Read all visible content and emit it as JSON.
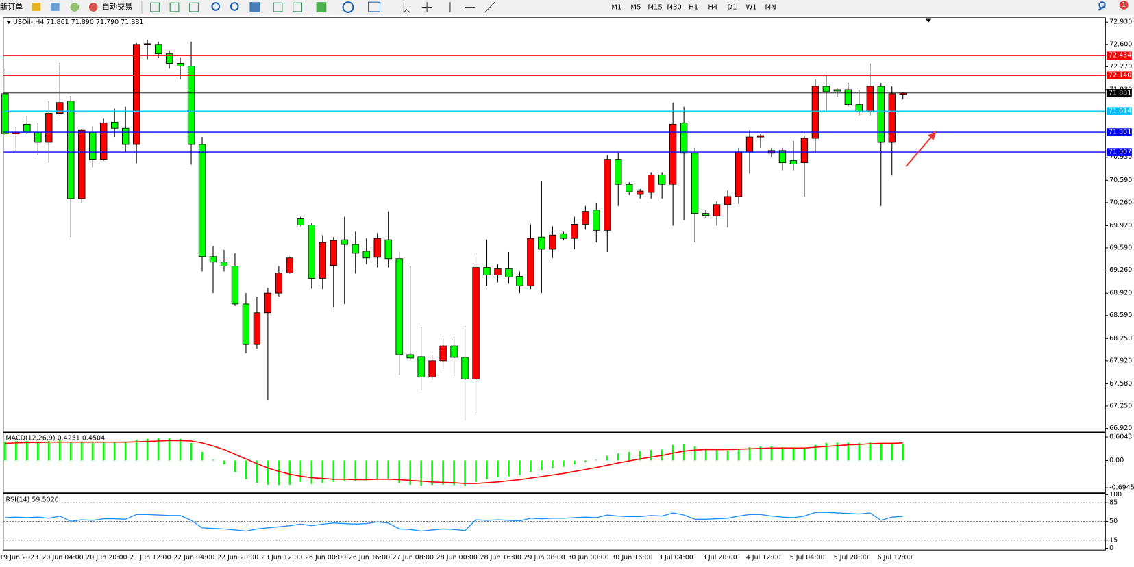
{
  "toolbar": {
    "new_order": "新订单",
    "auto_trading": "自动交易",
    "timeframes": [
      "M1",
      "M5",
      "M15",
      "M30",
      "H1",
      "H4",
      "D1",
      "W1",
      "MN"
    ],
    "notifications": 1
  },
  "chart_data": [
    {
      "type": "candlestick",
      "title": "USOil-,H4  71.861 71.890 71.790 71.881",
      "categories": [
        null,
        "19 Jun 2023",
        null,
        null,
        null,
        "20 Jun 04:00",
        null,
        null,
        null,
        "20 Jun 20:00",
        null,
        null,
        null,
        "21 Jun 12:00",
        null,
        null,
        null,
        "22 Jun 04:00",
        null,
        null,
        null,
        "22 Jun 20:00",
        null,
        null,
        null,
        "23 Jun 12:00",
        null,
        null,
        null,
        "26 Jun 00:00",
        null,
        null,
        null,
        "26 Jun 16:00",
        null,
        null,
        null,
        "27 Jun 08:00",
        null,
        null,
        null,
        "28 Jun 00:00",
        null,
        null,
        null,
        "28 Jun 16:00",
        null,
        null,
        null,
        "29 Jun 08:00",
        null,
        null,
        null,
        "30 Jun 00:00",
        null,
        null,
        null,
        "30 Jun 16:00",
        null,
        null,
        null,
        "3 Jul 04:00",
        null,
        null,
        null,
        "3 Jul 20:00",
        null,
        null,
        null,
        "4 Jul 12:00",
        null,
        null,
        null,
        "5 Jul 04:00",
        null,
        null,
        null,
        "5 Jul 20:00",
        null,
        null,
        null,
        "6 Jul 12:00",
        null
      ],
      "open": [
        71.87,
        71.28,
        71.42,
        71.3,
        71.15,
        71.58,
        71.76,
        70.32,
        71.3,
        70.9,
        71.45,
        71.36,
        71.12,
        72.6,
        72.6,
        72.46,
        72.32,
        72.28,
        71.12,
        69.46,
        69.38,
        69.32,
        68.76,
        68.16,
        68.63,
        68.92,
        69.22,
        70.02,
        69.93,
        69.14,
        69.33,
        69.71,
        69.64,
        69.54,
        69.45,
        69.71,
        69.43,
        68.01,
        67.98,
        67.68,
        67.92,
        68.14,
        67.97,
        67.65,
        69.3,
        69.19,
        69.28,
        69.17,
        69.03,
        69.75,
        69.57,
        69.8,
        69.73,
        69.94,
        70.15,
        69.85,
        70.9,
        70.53,
        70.38,
        70.41,
        70.67,
        70.53,
        71.44,
        70.99,
        70.1,
        70.06,
        70.23,
        70.35,
        71.01,
        71.23,
        70.99,
        71.03,
        70.88,
        70.85,
        71.21,
        71.98,
        71.93,
        71.93,
        71.71,
        71.6,
        71.98,
        71.15,
        71.861
      ],
      "high": [
        72.24,
        71.38,
        71.55,
        71.44,
        71.76,
        72.33,
        71.84,
        71.35,
        71.39,
        71.5,
        71.65,
        71.68,
        72.62,
        72.67,
        72.64,
        72.51,
        72.41,
        72.64,
        71.23,
        69.62,
        69.56,
        69.51,
        68.92,
        68.87,
        69.0,
        69.32,
        69.46,
        70.05,
        69.96,
        69.78,
        69.75,
        70.05,
        69.83,
        69.73,
        69.81,
        70.13,
        69.53,
        69.32,
        68.42,
        68.01,
        68.25,
        68.28,
        68.44,
        69.51,
        69.71,
        69.35,
        69.53,
        69.24,
        69.94,
        70.58,
        69.91,
        69.83,
        70.05,
        70.21,
        70.26,
        70.96,
        70.99,
        70.56,
        70.46,
        70.71,
        70.71,
        71.74,
        71.68,
        71.07,
        70.15,
        70.28,
        70.44,
        71.07,
        71.33,
        71.28,
        71.07,
        71.07,
        71.17,
        71.25,
        72.08,
        72.14,
        71.96,
        72.03,
        71.93,
        72.32,
        72.03,
        71.98,
        71.89
      ],
      "low": [
        71.26,
        70.99,
        71.27,
        70.96,
        70.85,
        71.55,
        69.75,
        70.26,
        70.78,
        70.88,
        71.23,
        71.01,
        70.84,
        72.38,
        72.4,
        72.24,
        72.08,
        70.82,
        69.24,
        68.92,
        69.24,
        68.73,
        68.03,
        68.1,
        67.34,
        68.87,
        69.21,
        69.91,
        68.99,
        68.98,
        68.71,
        68.76,
        69.21,
        69.35,
        69.3,
        69.3,
        67.71,
        67.94,
        67.48,
        67.64,
        67.8,
        67.69,
        67.02,
        67.15,
        69.03,
        69.08,
        69.06,
        68.92,
        68.98,
        68.92,
        69.44,
        69.7,
        69.57,
        69.86,
        69.67,
        69.53,
        70.21,
        70.37,
        70.32,
        70.32,
        70.32,
        69.92,
        70.0,
        69.67,
        70.03,
        69.92,
        69.89,
        70.24,
        70.69,
        71.07,
        70.93,
        70.74,
        70.74,
        70.35,
        70.99,
        71.6,
        71.82,
        71.68,
        71.55,
        71.55,
        70.21,
        70.66,
        71.79
      ],
      "close": [
        71.28,
        71.3,
        71.3,
        71.15,
        71.58,
        71.74,
        70.32,
        71.33,
        70.9,
        71.44,
        71.36,
        71.12,
        72.6,
        72.61,
        72.46,
        72.32,
        72.28,
        71.12,
        69.46,
        69.38,
        69.32,
        68.76,
        68.16,
        68.63,
        68.92,
        69.22,
        69.44,
        69.93,
        69.14,
        69.67,
        69.7,
        69.64,
        69.51,
        69.44,
        69.73,
        69.43,
        68.01,
        67.96,
        67.68,
        67.92,
        68.14,
        67.97,
        67.65,
        69.3,
        69.19,
        69.28,
        69.16,
        69.03,
        69.73,
        69.57,
        69.78,
        69.73,
        69.94,
        70.13,
        69.85,
        70.9,
        70.53,
        70.42,
        70.43,
        70.67,
        70.53,
        71.42,
        70.99,
        70.1,
        70.07,
        70.23,
        70.35,
        71.01,
        71.23,
        71.25,
        71.03,
        70.85,
        70.83,
        71.21,
        71.98,
        71.9,
        71.91,
        71.71,
        71.6,
        71.98,
        71.15,
        71.87,
        71.881
      ],
      "up_color": "#ff0000",
      "down_color": "#00ff00",
      "ylim": [
        66.87,
        73.0
      ],
      "yticks": [
        {
          "value": 72.93,
          "label": "72.930"
        },
        {
          "value": 72.6,
          "label": "72.600"
        },
        {
          "value": 72.27,
          "label": "72.270"
        },
        {
          "value": 71.93,
          "label": "71.930"
        },
        {
          "value": 70.93,
          "label": "70.930"
        },
        {
          "value": 70.59,
          "label": "70.590"
        },
        {
          "value": 70.26,
          "label": "70.260"
        },
        {
          "value": 69.92,
          "label": "69.920"
        },
        {
          "value": 69.59,
          "label": "69.590"
        },
        {
          "value": 69.26,
          "label": "69.260"
        },
        {
          "value": 68.92,
          "label": "68.920"
        },
        {
          "value": 68.59,
          "label": "68.590"
        },
        {
          "value": 68.25,
          "label": "68.250"
        },
        {
          "value": 67.92,
          "label": "67.920"
        },
        {
          "value": 67.58,
          "label": "67.580"
        },
        {
          "value": 67.25,
          "label": "67.250"
        },
        {
          "value": 66.92,
          "label": "66.920"
        }
      ],
      "levels": [
        {
          "value": 72.434,
          "label": "72.434",
          "color": "#ff0000"
        },
        {
          "value": 72.14,
          "label": "72.140",
          "color": "#ff0000"
        },
        {
          "value": 71.881,
          "label": "71.881",
          "color": "#000000"
        },
        {
          "value": 71.614,
          "label": "71.614",
          "color": "#00bfff"
        },
        {
          "value": 71.301,
          "label": "71.301",
          "color": "#0000ff"
        },
        {
          "value": 71.007,
          "label": "71.007",
          "color": "#0000ff"
        }
      ]
    },
    {
      "type": "macd",
      "title": "MACD(12,26,9) 0.4251 0.4504",
      "series": [
        {
          "color": "#00ff00",
          "values": [
            0.48,
            0.5,
            0.5,
            0.49,
            0.5,
            0.52,
            0.47,
            0.46,
            0.45,
            0.46,
            0.47,
            0.46,
            0.53,
            0.56,
            0.57,
            0.57,
            0.56,
            0.45,
            0.22,
            0.02,
            -0.1,
            -0.3,
            -0.48,
            -0.57,
            -0.62,
            -0.63,
            -0.62,
            -0.55,
            -0.6,
            -0.58,
            -0.55,
            -0.53,
            -0.52,
            -0.51,
            -0.48,
            -0.47,
            -0.58,
            -0.62,
            -0.64,
            -0.63,
            -0.62,
            -0.63,
            -0.66,
            -0.55,
            -0.48,
            -0.43,
            -0.4,
            -0.37,
            -0.3,
            -0.24,
            -0.2,
            -0.16,
            -0.1,
            -0.04,
            0.02,
            0.12,
            0.18,
            0.22,
            0.24,
            0.27,
            0.28,
            0.4,
            0.43,
            0.36,
            0.3,
            0.27,
            0.25,
            0.3,
            0.34,
            0.36,
            0.36,
            0.34,
            0.32,
            0.33,
            0.4,
            0.45,
            0.46,
            0.46,
            0.45,
            0.47,
            0.43,
            0.44,
            0.4251
          ]
        },
        {
          "color": "#ff0000",
          "values": [
            0.44,
            0.45,
            0.46,
            0.46,
            0.47,
            0.47,
            0.47,
            0.47,
            0.47,
            0.47,
            0.47,
            0.47,
            0.48,
            0.49,
            0.5,
            0.51,
            0.51,
            0.5,
            0.45,
            0.37,
            0.28,
            0.16,
            0.04,
            -0.08,
            -0.19,
            -0.28,
            -0.35,
            -0.4,
            -0.44,
            -0.46,
            -0.48,
            -0.48,
            -0.49,
            -0.49,
            -0.48,
            -0.48,
            -0.49,
            -0.51,
            -0.53,
            -0.55,
            -0.56,
            -0.57,
            -0.59,
            -0.59,
            -0.57,
            -0.55,
            -0.52,
            -0.49,
            -0.45,
            -0.41,
            -0.37,
            -0.33,
            -0.28,
            -0.23,
            -0.18,
            -0.12,
            -0.06,
            -0.01,
            0.04,
            0.09,
            0.13,
            0.19,
            0.24,
            0.27,
            0.28,
            0.28,
            0.28,
            0.29,
            0.3,
            0.31,
            0.32,
            0.32,
            0.32,
            0.32,
            0.34,
            0.36,
            0.38,
            0.4,
            0.41,
            0.43,
            0.44,
            0.44,
            0.4504
          ]
        }
      ],
      "ylim": [
        -0.82,
        0.7
      ],
      "yticks": [
        0.6043,
        {
          "value": 0,
          "label": "0.00"
        },
        -0.6945
      ]
    },
    {
      "type": "line",
      "title": "RSI(14) 59.5026",
      "color": "#1e90ff",
      "values": [
        57,
        58,
        57,
        58,
        56,
        60,
        50,
        53,
        52,
        55,
        55,
        54,
        63,
        63,
        62,
        61,
        61,
        52,
        38,
        37,
        36,
        34,
        32,
        36,
        38,
        40,
        42,
        45,
        42,
        45,
        47,
        46,
        45,
        46,
        49,
        47,
        36,
        35,
        32,
        34,
        36,
        35,
        33,
        53,
        52,
        53,
        52,
        51,
        56,
        55,
        56,
        56,
        57,
        58,
        57,
        62,
        60,
        59,
        59,
        61,
        60,
        66,
        62,
        54,
        54,
        55,
        56,
        60,
        63,
        63,
        60,
        58,
        57,
        60,
        67,
        67,
        66,
        65,
        64,
        66,
        52,
        58,
        59.5026
      ],
      "ylim": [
        0,
        100
      ],
      "yticks": [
        100,
        85,
        50,
        15,
        0
      ],
      "levels": [
        85,
        50,
        15
      ]
    }
  ]
}
